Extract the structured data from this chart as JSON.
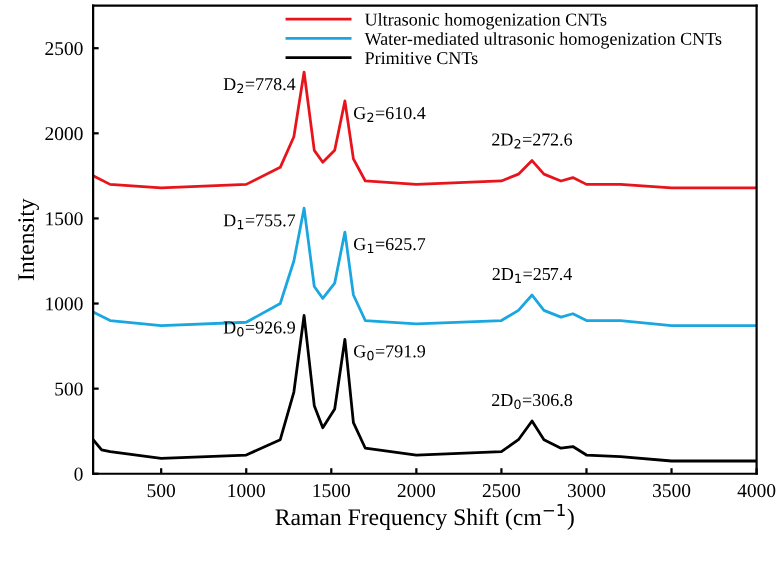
{
  "chart_data": {
    "type": "line",
    "xlabel": "Raman Frequency Shift (cm$^{−1}$)",
    "ylabel": "Intensity",
    "xlim": [
      100,
      4000
    ],
    "xticks": [
      500,
      1000,
      1500,
      2000,
      2500,
      3000,
      3500,
      4000
    ],
    "ylim": [
      0,
      2750
    ],
    "yticks": [
      0,
      500,
      1000,
      1500,
      2000,
      2500
    ],
    "grid": false,
    "legend": "top",
    "marker": "none",
    "line_style": "solid",
    "series": [
      {
        "name": "Ultrasonic homogenization CNTs",
        "color": "#e8141b",
        "x": [
          100,
          200,
          500,
          1000,
          1200,
          1280,
          1340,
          1400,
          1450,
          1520,
          1580,
          1630,
          1700,
          2000,
          2500,
          2600,
          2680,
          2750,
          2850,
          2920,
          3000,
          3200,
          3500,
          4000
        ],
        "values": [
          1750,
          1700,
          1680,
          1700,
          1800,
          1980,
          2360,
          1900,
          1830,
          1900,
          2190,
          1850,
          1720,
          1700,
          1720,
          1760,
          1840,
          1760,
          1720,
          1740,
          1700,
          1700,
          1680,
          1680
        ]
      },
      {
        "name": "Water-mediated ultrasonic homogenization CNTs",
        "color": "#1aa7e0",
        "x": [
          100,
          200,
          500,
          1000,
          1200,
          1280,
          1340,
          1400,
          1450,
          1520,
          1580,
          1630,
          1700,
          2000,
          2500,
          2600,
          2680,
          2750,
          2850,
          2920,
          3000,
          3200,
          3500,
          4000
        ],
        "values": [
          950,
          900,
          870,
          890,
          1000,
          1250,
          1560,
          1100,
          1030,
          1120,
          1420,
          1050,
          900,
          880,
          900,
          960,
          1050,
          960,
          920,
          940,
          900,
          900,
          870,
          870
        ]
      },
      {
        "name": "Primitive CNTs",
        "color": "#000000",
        "x": [
          100,
          150,
          200,
          500,
          1000,
          1200,
          1280,
          1340,
          1400,
          1450,
          1520,
          1580,
          1630,
          1700,
          2000,
          2500,
          2600,
          2680,
          2750,
          2850,
          2920,
          3000,
          3200,
          3500,
          4000
        ],
        "values": [
          200,
          140,
          130,
          90,
          110,
          200,
          480,
          930,
          400,
          270,
          380,
          790,
          300,
          150,
          110,
          130,
          200,
          310,
          200,
          150,
          160,
          110,
          100,
          75,
          75
        ]
      }
    ],
    "annotations": [
      {
        "text": "D$_{2}$=778.4",
        "x": 1340,
        "y": 2360
      },
      {
        "text": "G$_{2}$=610.4",
        "x": 1580,
        "y": 2190
      },
      {
        "text": "2D$_{2}$=272.6",
        "x": 2680,
        "y": 1840
      },
      {
        "text": "D$_{1}$=755.7",
        "x": 1340,
        "y": 1560
      },
      {
        "text": "G$_{1}$=625.7",
        "x": 1580,
        "y": 1420
      },
      {
        "text": "2D$_{1}$=257.4",
        "x": 2680,
        "y": 1050
      },
      {
        "text": "D$_{0}$=926.9",
        "x": 1340,
        "y": 930
      },
      {
        "text": "G$_{0}$=791.9",
        "x": 1580,
        "y": 790
      },
      {
        "text": "2D$_{0}$=306.8",
        "x": 2680,
        "y": 310
      }
    ]
  }
}
